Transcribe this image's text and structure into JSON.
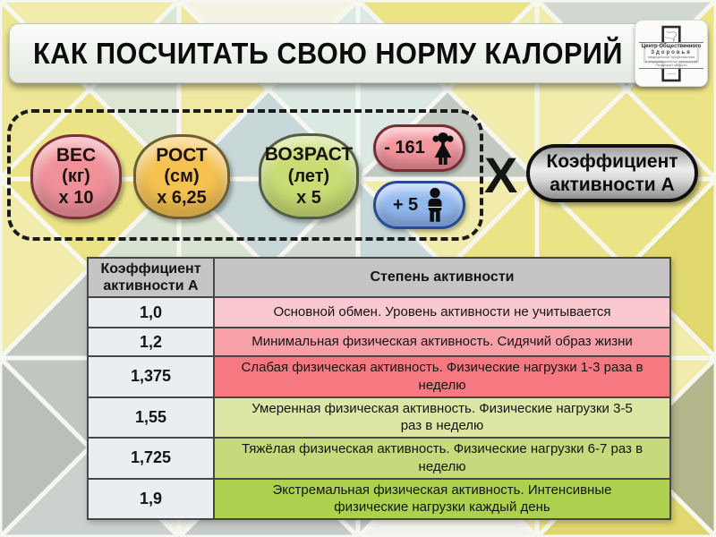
{
  "header": {
    "title": "КАК ПОСЧИТАТЬ СВОЮ НОРМУ КАЛОРИЙ",
    "logo": {
      "line1": "Центр Общественного",
      "line2": "Здоровья",
      "line3": "медицинской профилактики",
      "line4": "и информационных технологий",
      "line5": "Рязанской области"
    }
  },
  "formula": {
    "factors": [
      {
        "title": "ВЕС",
        "unit": "(кг)",
        "multiplier": "х 10",
        "color": "#f0919a"
      },
      {
        "title": "РОСТ",
        "unit": "(см)",
        "multiplier": "х 6,25",
        "color": "#f5c250"
      },
      {
        "title": "ВОЗРАСТ",
        "unit": "(лет)",
        "multiplier": "х 5",
        "color": "#c9dd74"
      }
    ],
    "gender": [
      {
        "value": "- 161",
        "icon": "woman-icon",
        "color": "#f4959d"
      },
      {
        "value": "+ 5",
        "icon": "man-icon",
        "color": "#92b8f0"
      }
    ],
    "operator": "X",
    "coefficient_label": "Коэффициент активности А"
  },
  "table": {
    "headers": {
      "coefficient": "Коэффициент активности А",
      "activity": "Степень активности"
    },
    "rows": [
      {
        "coefficient": "1,0",
        "description": "Основной обмен. Уровень активности не учитывается",
        "color": "#f9c9cf"
      },
      {
        "coefficient": "1,2",
        "description": "Минимальная физическая активность. Сидячий образ жизни",
        "color": "#f7a0a8"
      },
      {
        "coefficient": "1,375",
        "description": "Слабая физическая активность. Физические нагрузки 1-3 раза в неделю",
        "color": "#f67881"
      },
      {
        "coefficient": "1,55",
        "description": "Умеренная физическая активность. Физические нагрузки 3-5 раз в неделю",
        "color": "#dde6a4"
      },
      {
        "coefficient": "1,725",
        "description": "Тяжёлая физическая активность. Физические нагрузки 6-7 раз в неделю",
        "color": "#c4da7d"
      },
      {
        "coefficient": "1,9",
        "description": "Экстремальная физическая активность. Интенсивные физические нагрузки каждый день",
        "color": "#add14f"
      }
    ]
  },
  "background": {
    "tile": 200,
    "stroke": "#f7f7f2",
    "cells": [
      [
        "#f1ecac",
        "#dde6d2",
        "#ece387",
        "#ede696"
      ],
      [
        "#f4f2e2",
        "#dce8e2",
        "#c8d8d8",
        "#efe9a2"
      ],
      [
        "#ece387",
        "#f1ecac",
        "#c3c9c3",
        "#dce8e4"
      ],
      [
        "#d4d8d2",
        "#ece387",
        "#efe594",
        "#f1ecac"
      ],
      [
        "#ece387",
        "#d9e3d2",
        "#c0c6c0",
        "#f1ecac"
      ],
      [
        "#c8d8d8",
        "#d4d8d2",
        "#f2f2ec",
        "#d9e3d2"
      ],
      [
        "#f1ecac",
        "#ece387",
        "#d4d8d2",
        "#c8d8d8"
      ],
      [
        "#ece387",
        "#e0d76e",
        "#f1ecac",
        "#ece387"
      ],
      [
        "#c0c6c0",
        "#f2f2ec",
        "#cdd1cd",
        "#b9bfb9"
      ],
      [
        "#f2f2ec",
        "#d4d8d2",
        "#c6cac6",
        "#f2f2ec"
      ],
      [
        "#d4d8d2",
        "#f1ecac",
        "#f2f2ec",
        "#c9cdc9"
      ],
      [
        "#f1ecac",
        "#b5b58c",
        "#e0d76e",
        "#ece387"
      ]
    ]
  }
}
